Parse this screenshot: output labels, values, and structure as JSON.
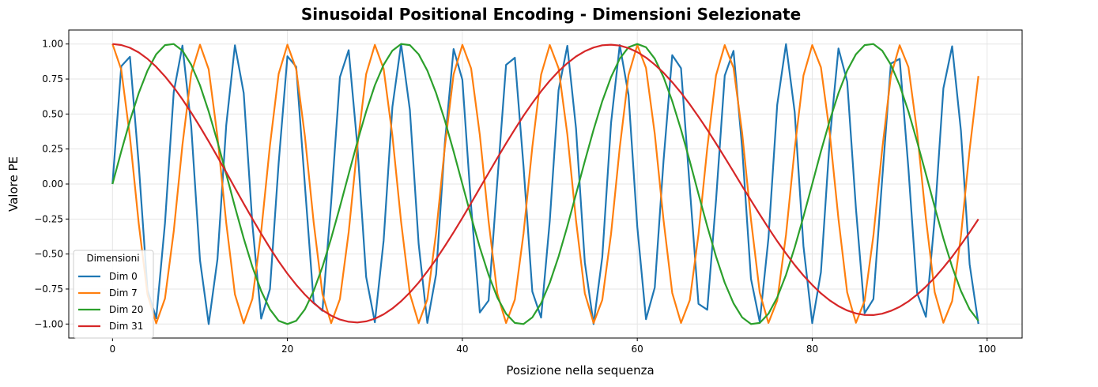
{
  "chart_data": {
    "type": "line",
    "title": "Sinusoidal Positional Encoding - Dimensioni Selezionate",
    "xlabel": "Posizione nella sequenza",
    "ylabel": "Valore PE",
    "xlim": [
      -5,
      104
    ],
    "ylim": [
      -1.1,
      1.1
    ],
    "x_ticks": [
      0,
      20,
      40,
      60,
      80,
      100
    ],
    "y_ticks": [
      -1.0,
      -0.75,
      -0.5,
      -0.25,
      0.0,
      0.25,
      0.5,
      0.75,
      1.0
    ],
    "x_tick_labels": [
      "0",
      "20",
      "40",
      "60",
      "80",
      "100"
    ],
    "y_tick_labels": [
      "−1.00",
      "−0.75",
      "−0.50",
      "−0.25",
      "0.00",
      "0.25",
      "0.50",
      "0.75",
      "1.00"
    ],
    "grid": true,
    "legend": {
      "title": "Dimensioni",
      "placement": "lower-left"
    },
    "series": [
      {
        "name": "Dim 0",
        "color": "#1f77b4",
        "x": [
          0,
          1,
          2,
          3,
          4,
          5,
          6,
          7,
          8,
          9,
          10,
          11,
          12,
          13,
          14,
          15,
          16,
          17,
          18,
          19,
          20,
          21,
          22,
          23,
          24,
          25,
          26,
          27,
          28,
          29,
          30,
          31,
          32,
          33,
          34,
          35,
          36,
          37,
          38,
          39,
          40,
          41,
          42,
          43,
          44,
          45,
          46,
          47,
          48,
          49,
          50,
          51,
          52,
          53,
          54,
          55,
          56,
          57,
          58,
          59,
          60,
          61,
          62,
          63,
          64,
          65,
          66,
          67,
          68,
          69,
          70,
          71,
          72,
          73,
          74,
          75,
          76,
          77,
          78,
          79,
          80,
          81,
          82,
          83,
          84,
          85,
          86,
          87,
          88,
          89,
          90,
          91,
          92,
          93,
          94,
          95,
          96,
          97,
          98,
          99
        ],
        "values": [
          0.0,
          0.841,
          0.909,
          0.141,
          -0.757,
          -0.959,
          -0.279,
          0.657,
          0.989,
          0.412,
          -0.544,
          -1.0,
          -0.537,
          0.42,
          0.991,
          0.65,
          -0.288,
          -0.961,
          -0.751,
          0.15,
          0.913,
          0.837,
          -0.009,
          -0.846,
          -0.906,
          -0.132,
          0.763,
          0.956,
          0.271,
          -0.664,
          -0.988,
          -0.404,
          0.551,
          1.0,
          0.529,
          -0.428,
          -0.992,
          -0.644,
          0.296,
          0.964,
          0.745,
          -0.159,
          -0.917,
          -0.832,
          0.018,
          0.851,
          0.902,
          0.124,
          -0.768,
          -0.954,
          -0.262,
          0.67,
          0.987,
          0.396,
          -0.559,
          -1.0,
          -0.522,
          0.436,
          0.993,
          0.637,
          -0.305,
          -0.966,
          -0.739,
          0.167,
          0.92,
          0.827,
          -0.027,
          -0.856,
          -0.898,
          -0.115,
          0.774,
          0.951,
          0.254,
          -0.677,
          -0.985,
          -0.388,
          0.566,
          0.999,
          0.514,
          -0.444,
          -0.994,
          -0.63,
          0.313,
          0.968,
          0.733,
          -0.176,
          -0.923,
          -0.822,
          0.035,
          0.86,
          0.894,
          0.107,
          -0.779,
          -0.948,
          -0.245,
          0.683,
          0.984,
          0.38,
          -0.573,
          -0.999
        ]
      },
      {
        "name": "Dim 7",
        "color": "#ff7f0e",
        "x": [
          0,
          1,
          2,
          3,
          4,
          5,
          6,
          7,
          8,
          9,
          10,
          11,
          12,
          13,
          14,
          15,
          16,
          17,
          18,
          19,
          20,
          21,
          22,
          23,
          24,
          25,
          26,
          27,
          28,
          29,
          30,
          31,
          32,
          33,
          34,
          35,
          36,
          37,
          38,
          39,
          40,
          41,
          42,
          43,
          44,
          45,
          46,
          47,
          48,
          49,
          50,
          51,
          52,
          53,
          54,
          55,
          56,
          57,
          58,
          59,
          60,
          61,
          62,
          63,
          64,
          65,
          66,
          67,
          68,
          69,
          70,
          71,
          72,
          73,
          74,
          75,
          76,
          77,
          78,
          79,
          80,
          81,
          82,
          83,
          84,
          85,
          86,
          87,
          88,
          89,
          90,
          91,
          92,
          93,
          94,
          95,
          96,
          97,
          98,
          99
        ],
        "values": [
          1.0,
          0.817,
          0.335,
          -0.282,
          -0.79,
          -0.995,
          -0.818,
          -0.337,
          0.28,
          0.789,
          0.995,
          0.819,
          0.339,
          -0.278,
          -0.788,
          -0.995,
          -0.82,
          -0.34,
          0.276,
          0.787,
          0.995,
          0.821,
          0.342,
          -0.274,
          -0.786,
          -0.994,
          -0.822,
          -0.344,
          0.272,
          0.785,
          0.994,
          0.823,
          0.346,
          -0.27,
          -0.784,
          -0.994,
          -0.824,
          -0.348,
          0.268,
          0.783,
          0.994,
          0.825,
          0.35,
          -0.266,
          -0.782,
          -0.993,
          -0.826,
          -0.352,
          0.264,
          0.781,
          0.993,
          0.827,
          0.354,
          -0.262,
          -0.78,
          -0.993,
          -0.828,
          -0.356,
          0.26,
          0.779,
          0.993,
          0.829,
          0.358,
          -0.258,
          -0.778,
          -0.992,
          -0.83,
          -0.36,
          0.256,
          0.777,
          0.992,
          0.831,
          0.362,
          -0.254,
          -0.776,
          -0.992,
          -0.832,
          -0.364,
          0.252,
          0.775,
          0.992,
          0.833,
          0.366,
          -0.25,
          -0.774,
          -0.991,
          -0.834,
          -0.368,
          0.248,
          0.773,
          0.991,
          0.835,
          0.37,
          -0.246,
          -0.772,
          -0.991,
          -0.836,
          -0.372,
          0.244,
          0.771
        ]
      },
      {
        "name": "Dim 20",
        "color": "#2ca02c",
        "x": [
          0,
          1,
          2,
          3,
          4,
          5,
          6,
          7,
          8,
          9,
          10,
          11,
          12,
          13,
          14,
          15,
          16,
          17,
          18,
          19,
          20,
          21,
          22,
          23,
          24,
          25,
          26,
          27,
          28,
          29,
          30,
          31,
          32,
          33,
          34,
          35,
          36,
          37,
          38,
          39,
          40,
          41,
          42,
          43,
          44,
          45,
          46,
          47,
          48,
          49,
          50,
          51,
          52,
          53,
          54,
          55,
          56,
          57,
          58,
          59,
          60,
          61,
          62,
          63,
          64,
          65,
          66,
          67,
          68,
          69,
          70,
          71,
          72,
          73,
          74,
          75,
          76,
          77,
          78,
          79,
          80,
          81,
          82,
          83,
          84,
          85,
          86,
          87,
          88,
          89,
          90,
          91,
          92,
          93,
          94,
          95,
          96,
          97,
          98,
          99
        ],
        "values": [
          0.0,
          0.233,
          0.453,
          0.649,
          0.81,
          0.927,
          0.992,
          1.0,
          0.953,
          0.852,
          0.705,
          0.518,
          0.302,
          0.071,
          -0.163,
          -0.388,
          -0.592,
          -0.764,
          -0.895,
          -0.977,
          -1.0,
          -0.977,
          -0.895,
          -0.764,
          -0.592,
          -0.388,
          -0.163,
          0.071,
          0.302,
          0.518,
          0.705,
          0.852,
          0.953,
          1.0,
          0.992,
          0.927,
          0.81,
          0.649,
          0.453,
          0.233,
          0.0,
          -0.233,
          -0.453,
          -0.649,
          -0.81,
          -0.927,
          -0.992,
          -1.0,
          -0.953,
          -0.852,
          -0.705,
          -0.518,
          -0.302,
          -0.071,
          0.163,
          0.388,
          0.592,
          0.764,
          0.895,
          0.977,
          1.0,
          0.977,
          0.895,
          0.764,
          0.592,
          0.388,
          0.163,
          -0.071,
          -0.302,
          -0.518,
          -0.705,
          -0.852,
          -0.953,
          -1.0,
          -0.992,
          -0.927,
          -0.81,
          -0.649,
          -0.453,
          -0.233,
          0.0,
          0.233,
          0.453,
          0.649,
          0.81,
          0.927,
          0.992,
          1.0,
          0.953,
          0.852,
          0.705,
          0.518,
          0.302,
          0.071,
          -0.163,
          -0.388,
          -0.592,
          -0.764,
          -0.895,
          -0.977
        ]
      },
      {
        "name": "Dim 31",
        "color": "#d62728",
        "x": [
          0,
          1,
          2,
          3,
          4,
          5,
          6,
          7,
          8,
          9,
          10,
          11,
          12,
          13,
          14,
          15,
          16,
          17,
          18,
          19,
          20,
          21,
          22,
          23,
          24,
          25,
          26,
          27,
          28,
          29,
          30,
          31,
          32,
          33,
          34,
          35,
          36,
          37,
          38,
          39,
          40,
          41,
          42,
          43,
          44,
          45,
          46,
          47,
          48,
          49,
          50,
          51,
          52,
          53,
          54,
          55,
          56,
          57,
          58,
          59,
          60,
          61,
          62,
          63,
          64,
          65,
          66,
          67,
          68,
          69,
          70,
          71,
          72,
          73,
          74,
          75,
          76,
          77,
          78,
          79,
          80,
          81,
          82,
          83,
          84,
          85,
          86,
          87,
          88,
          89,
          90,
          91,
          92,
          93,
          94,
          95,
          96,
          97,
          98,
          99
        ],
        "values": [
          1.0,
          0.993,
          0.973,
          0.94,
          0.894,
          0.837,
          0.769,
          0.691,
          0.604,
          0.51,
          0.409,
          0.304,
          0.195,
          0.084,
          -0.028,
          -0.14,
          -0.249,
          -0.355,
          -0.457,
          -0.552,
          -0.64,
          -0.72,
          -0.79,
          -0.851,
          -0.901,
          -0.94,
          -0.968,
          -0.984,
          -0.989,
          -0.981,
          -0.962,
          -0.931,
          -0.889,
          -0.837,
          -0.775,
          -0.704,
          -0.624,
          -0.537,
          -0.443,
          -0.345,
          -0.242,
          -0.136,
          -0.029,
          0.079,
          0.185,
          0.29,
          0.391,
          0.488,
          0.578,
          0.662,
          0.738,
          0.805,
          0.863,
          0.911,
          0.948,
          0.975,
          0.991,
          0.995,
          0.989,
          0.971,
          0.942,
          0.903,
          0.853,
          0.795,
          0.727,
          0.652,
          0.569,
          0.481,
          0.388,
          0.29,
          0.19,
          0.088,
          -0.015,
          -0.117,
          -0.217,
          -0.314,
          -0.408,
          -0.496,
          -0.578,
          -0.654,
          -0.721,
          -0.781,
          -0.831,
          -0.872,
          -0.903,
          -0.924,
          -0.935,
          -0.936,
          -0.926,
          -0.906,
          -0.877,
          -0.838,
          -0.79,
          -0.733,
          -0.669,
          -0.597,
          -0.519,
          -0.434,
          -0.345,
          -0.251
        ]
      }
    ]
  }
}
